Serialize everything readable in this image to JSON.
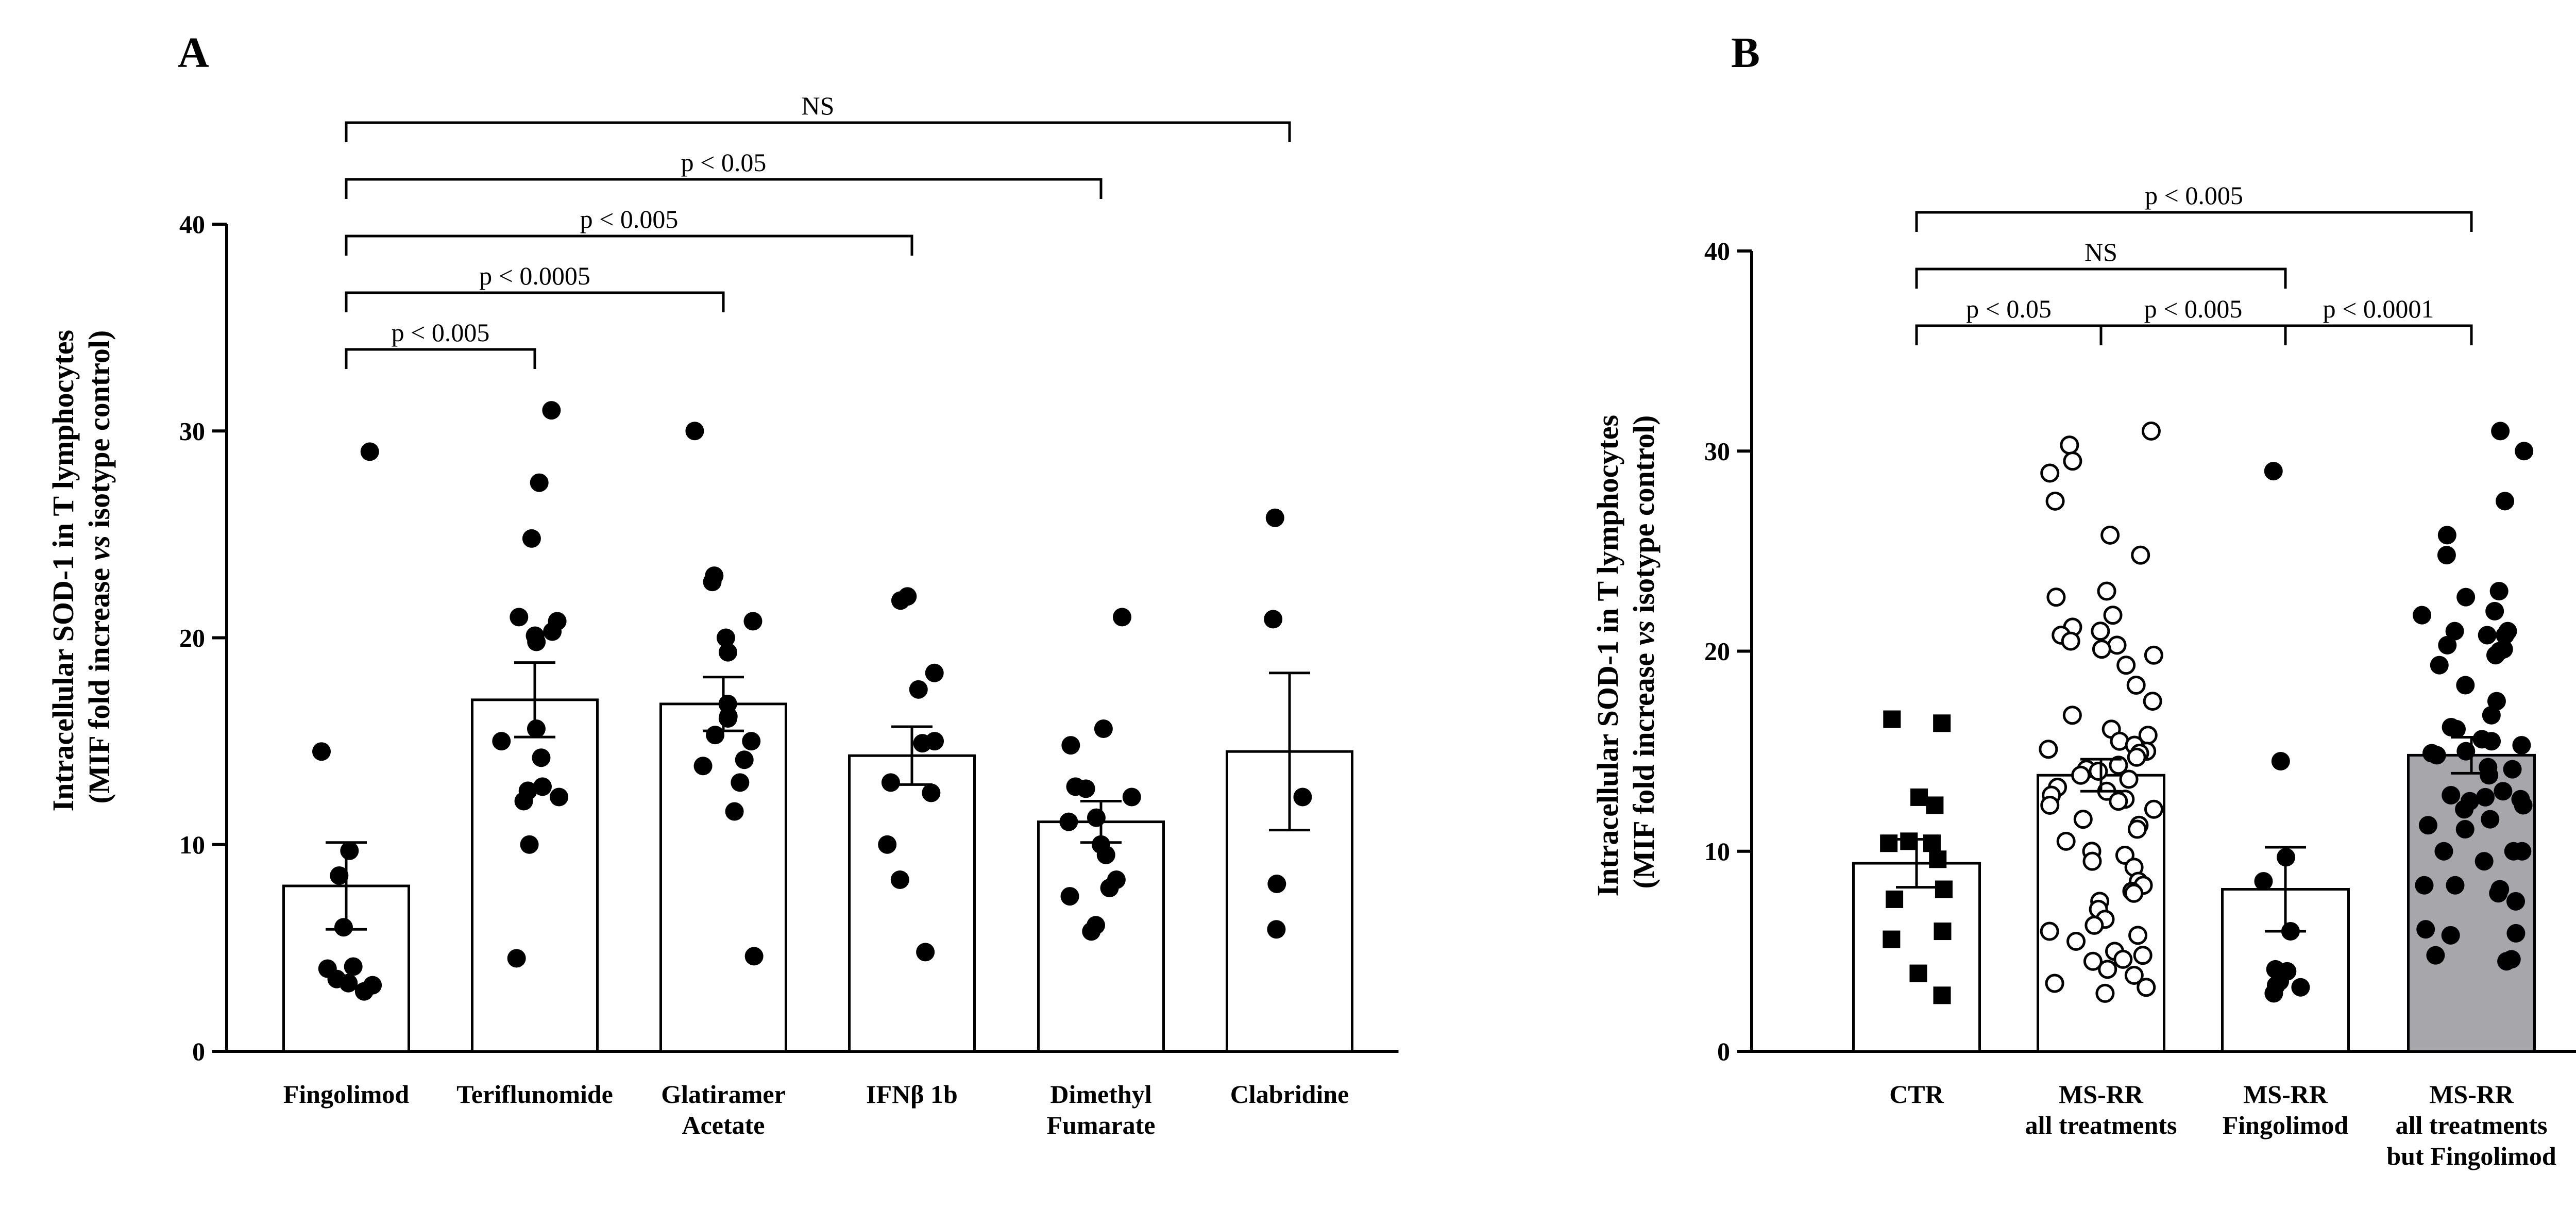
{
  "chart_data": [
    {
      "type": "bar",
      "panel": "A",
      "ylabel_line1": "Intracellular SOD-1 in T lymphocytes",
      "ylabel_line2_pre": "(MIF fold increase ",
      "ylabel_line2_it": "vs",
      "ylabel_line2_post": " isotype control)",
      "ylim": [
        0,
        40
      ],
      "yticks": [
        0,
        10,
        20,
        30,
        40
      ],
      "categories": [
        {
          "label": [
            "Fingolimod"
          ],
          "mean": 8.0,
          "sem": 2.1,
          "fill": "#ffffff",
          "marker": "dot-filled",
          "points": [
            29,
            14.5,
            9.7,
            8.5,
            6.0,
            4.1,
            4.0,
            3.5,
            3.3,
            3.2,
            2.9
          ]
        },
        {
          "label": [
            "Teriflunomide"
          ],
          "mean": 17.0,
          "sem": 1.8,
          "fill": "#ffffff",
          "marker": "dot-filled",
          "points": [
            31,
            27.5,
            24.8,
            21,
            20.8,
            20.3,
            20.1,
            19.8,
            15.6,
            15.0,
            14.2,
            12.8,
            12.6,
            12.3,
            12.1,
            10,
            4.5
          ]
        },
        {
          "label": [
            "Glatiramer",
            "Acetate"
          ],
          "mean": 16.8,
          "sem": 1.3,
          "fill": "#ffffff",
          "marker": "dot-filled",
          "points": [
            30,
            23,
            22.7,
            20.8,
            20,
            19.3,
            16.8,
            16.2,
            16.1,
            15.3,
            15.0,
            14.1,
            13.8,
            13.0,
            11.6,
            4.6
          ]
        },
        {
          "label": [
            "IFNβ 1b"
          ],
          "mean": 14.3,
          "sem": 1.4,
          "fill": "#ffffff",
          "marker": "dot-filled",
          "points": [
            22,
            21.8,
            18.3,
            17.5,
            15.0,
            14.9,
            13.0,
            12.5,
            10.0,
            8.3,
            4.8
          ]
        },
        {
          "label": [
            "Dimethyl",
            "Fumarate"
          ],
          "mean": 11.1,
          "sem": 1.0,
          "fill": "#ffffff",
          "marker": "dot-filled",
          "points": [
            21,
            15.6,
            14.8,
            12.8,
            12.7,
            12.3,
            11.3,
            11.1,
            10.0,
            9.5,
            8.3,
            7.9,
            7.5,
            6.1,
            5.8
          ]
        },
        {
          "label": [
            "Clabridine"
          ],
          "mean": 14.5,
          "sem": 3.8,
          "fill": "#ffffff",
          "marker": "dot-filled",
          "points": [
            25.8,
            20.9,
            12.3,
            8.1,
            5.9
          ]
        }
      ],
      "comparisons": [
        {
          "from": 0,
          "to": 5,
          "label": "NS",
          "level": 4
        },
        {
          "from": 0,
          "to": 4,
          "label": "p < 0.05",
          "level": 3
        },
        {
          "from": 0,
          "to": 3,
          "label": "p < 0.005",
          "level": 2
        },
        {
          "from": 0,
          "to": 2,
          "label": "p < 0.0005",
          "level": 1
        },
        {
          "from": 0,
          "to": 1,
          "label": "p < 0.005",
          "level": 0
        }
      ]
    },
    {
      "type": "bar",
      "panel": "B",
      "ylabel_line1": "Intracellular SOD-1 in T lymphocytes",
      "ylabel_line2_pre": "(MIF fold increase ",
      "ylabel_line2_it": "vs",
      "ylabel_line2_post": " isotype control)",
      "ylim": [
        0,
        40
      ],
      "yticks": [
        0,
        10,
        20,
        30,
        40
      ],
      "categories": [
        {
          "label": [
            "CTR"
          ],
          "mean": 9.4,
          "sem": 1.2,
          "fill": "#ffffff",
          "marker": "square-filled",
          "points": [
            16.6,
            16.4,
            12.7,
            12.3,
            10.5,
            10.4,
            10.4,
            9.6,
            8.1,
            7.6,
            6.0,
            5.6,
            3.9,
            2.8
          ]
        },
        {
          "label": [
            "MS-RR",
            "all treatments"
          ],
          "mean": 13.8,
          "sem": 0.8,
          "fill": "#ffffff",
          "marker": "dot-open",
          "points": [
            31,
            30.3,
            29.5,
            28.9,
            27.5,
            25.8,
            24.8,
            23,
            22.7,
            21.8,
            21.2,
            21.0,
            20.8,
            20.5,
            20.3,
            20.1,
            19.8,
            19.3,
            18.3,
            17.5,
            16.8,
            16.1,
            15.8,
            15.5,
            15.3,
            15.1,
            15.0,
            14.9,
            14.7,
            14.3,
            14.1,
            14.0,
            13.8,
            13.6,
            13.2,
            13.0,
            12.8,
            12.6,
            12.5,
            12.3,
            12.1,
            11.6,
            11.3,
            11.1,
            10.5,
            10.0,
            9.8,
            9.5,
            9.2,
            8.5,
            8.3,
            8.0,
            7.9,
            7.5,
            7.1,
            6.6,
            6.3,
            6.0,
            5.8,
            5.5,
            5.0,
            4.8,
            4.6,
            4.5,
            4.1,
            3.8,
            3.4,
            3.2,
            2.9
          ]
        },
        {
          "label": [
            "MS-RR",
            "Fingolimod"
          ],
          "mean": 8.1,
          "sem": 2.1,
          "fill": "#ffffff",
          "marker": "dot-filled",
          "points": [
            29,
            14.5,
            9.7,
            8.5,
            6.0,
            4.1,
            4.0,
            3.5,
            3.3,
            3.2,
            2.9
          ]
        },
        {
          "label": [
            "MS-RR",
            "all treatments",
            "but Fingolimod"
          ],
          "mean": 14.8,
          "sem": 0.9,
          "fill": "#a7a6ab",
          "marker": "dot-filled",
          "points": [
            31,
            30,
            27.5,
            25.8,
            24.8,
            23,
            22.7,
            22,
            21.8,
            21,
            21,
            20.8,
            20.8,
            20.3,
            20.1,
            20,
            19.8,
            19.3,
            18.3,
            17.5,
            16.8,
            16.2,
            16.1,
            15.6,
            15.5,
            15.3,
            15.0,
            14.9,
            14.8,
            14.2,
            14.1,
            13.8,
            13.0,
            12.8,
            12.7,
            12.6,
            12.5,
            12.3,
            12.1,
            11.6,
            11.3,
            11.1,
            10.0,
            10.0,
            10.0,
            9.5,
            8.3,
            8.3,
            8.1,
            7.9,
            7.5,
            6.1,
            5.9,
            5.8,
            4.8,
            4.6,
            4.5
          ]
        }
      ],
      "comparisons": [
        {
          "from": 0,
          "to": 3,
          "label": "p  < 0.005",
          "level": 2
        },
        {
          "from": 0,
          "to": 2,
          "label": "NS",
          "level": 1
        },
        {
          "from": 0,
          "to": 1,
          "label": "p < 0.05",
          "level": 0
        },
        {
          "from": 1,
          "to": 2,
          "label": "p < 0.005",
          "level": 0
        },
        {
          "from": 2,
          "to": 3,
          "label": "p < 0.0001",
          "level": 0
        }
      ]
    }
  ]
}
